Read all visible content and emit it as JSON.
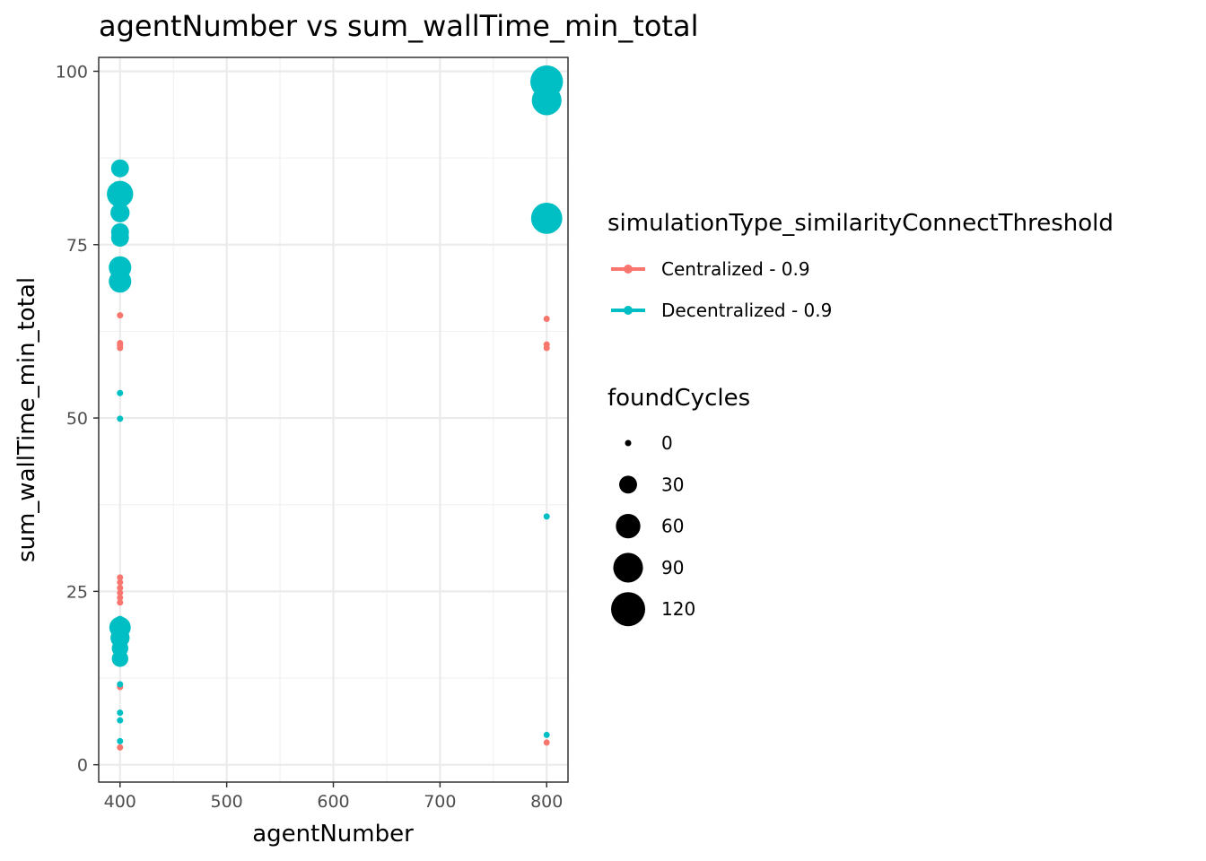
{
  "chart_data": {
    "type": "scatter",
    "title": "agentNumber  vs  sum_wallTime_min_total",
    "xlabel": "agentNumber",
    "ylabel": "sum_wallTime_min_total",
    "xlim": [
      380,
      820
    ],
    "ylim": [
      -2.5,
      102
    ],
    "x_ticks": [
      400,
      500,
      600,
      700,
      800
    ],
    "y_ticks": [
      0,
      25,
      50,
      75,
      100
    ],
    "grid": true,
    "legend_color": {
      "title": "simulationType_similarityConnectThreshold",
      "placement": "right",
      "entries": [
        {
          "label": "Centralized - 0.9",
          "color": "#F8766D"
        },
        {
          "label": "Decentralized - 0.9",
          "color": "#00BFC4"
        }
      ]
    },
    "legend_size": {
      "title": "foundCycles",
      "placement": "right",
      "entries": [
        {
          "label": "0",
          "value": 0
        },
        {
          "label": "30",
          "value": 30
        },
        {
          "label": "60",
          "value": 60
        },
        {
          "label": "90",
          "value": 90
        },
        {
          "label": "120",
          "value": 120
        }
      ]
    },
    "series": [
      {
        "name": "Centralized - 0.9",
        "color": "#F8766D",
        "points": [
          {
            "x": 400,
            "y": 64.8,
            "size": 0
          },
          {
            "x": 400,
            "y": 60.8,
            "size": 0
          },
          {
            "x": 400,
            "y": 60.5,
            "size": 0
          },
          {
            "x": 400,
            "y": 60.1,
            "size": 0
          },
          {
            "x": 400,
            "y": 27.0,
            "size": 0
          },
          {
            "x": 400,
            "y": 26.3,
            "size": 0
          },
          {
            "x": 400,
            "y": 25.5,
            "size": 0
          },
          {
            "x": 400,
            "y": 24.8,
            "size": 0
          },
          {
            "x": 400,
            "y": 24.1,
            "size": 0
          },
          {
            "x": 400,
            "y": 23.4,
            "size": 0
          },
          {
            "x": 400,
            "y": 21.0,
            "size": 0
          },
          {
            "x": 400,
            "y": 11.2,
            "size": 0
          },
          {
            "x": 400,
            "y": 2.5,
            "size": 0
          },
          {
            "x": 800,
            "y": 64.3,
            "size": 0
          },
          {
            "x": 800,
            "y": 60.6,
            "size": 0
          },
          {
            "x": 800,
            "y": 60.1,
            "size": 0
          },
          {
            "x": 800,
            "y": 3.2,
            "size": 0
          }
        ]
      },
      {
        "name": "Decentralized - 0.9",
        "color": "#00BFC4",
        "points": [
          {
            "x": 400,
            "y": 86.0,
            "size": 30
          },
          {
            "x": 400,
            "y": 82.3,
            "size": 70
          },
          {
            "x": 400,
            "y": 79.6,
            "size": 35
          },
          {
            "x": 400,
            "y": 76.8,
            "size": 30
          },
          {
            "x": 400,
            "y": 76.0,
            "size": 30
          },
          {
            "x": 400,
            "y": 71.7,
            "size": 50
          },
          {
            "x": 400,
            "y": 69.7,
            "size": 50
          },
          {
            "x": 400,
            "y": 53.6,
            "size": 0
          },
          {
            "x": 400,
            "y": 49.9,
            "size": 0
          },
          {
            "x": 400,
            "y": 20.8,
            "size": 5
          },
          {
            "x": 400,
            "y": 19.8,
            "size": 45
          },
          {
            "x": 400,
            "y": 18.3,
            "size": 35
          },
          {
            "x": 400,
            "y": 16.8,
            "size": 25
          },
          {
            "x": 400,
            "y": 15.3,
            "size": 25
          },
          {
            "x": 400,
            "y": 11.6,
            "size": 0
          },
          {
            "x": 400,
            "y": 7.5,
            "size": 0
          },
          {
            "x": 400,
            "y": 6.4,
            "size": 0
          },
          {
            "x": 400,
            "y": 3.4,
            "size": 0
          },
          {
            "x": 800,
            "y": 98.5,
            "size": 110
          },
          {
            "x": 800,
            "y": 95.8,
            "size": 90
          },
          {
            "x": 800,
            "y": 78.8,
            "size": 100
          },
          {
            "x": 800,
            "y": 35.8,
            "size": 0
          },
          {
            "x": 800,
            "y": 4.3,
            "size": 0
          }
        ]
      }
    ]
  }
}
